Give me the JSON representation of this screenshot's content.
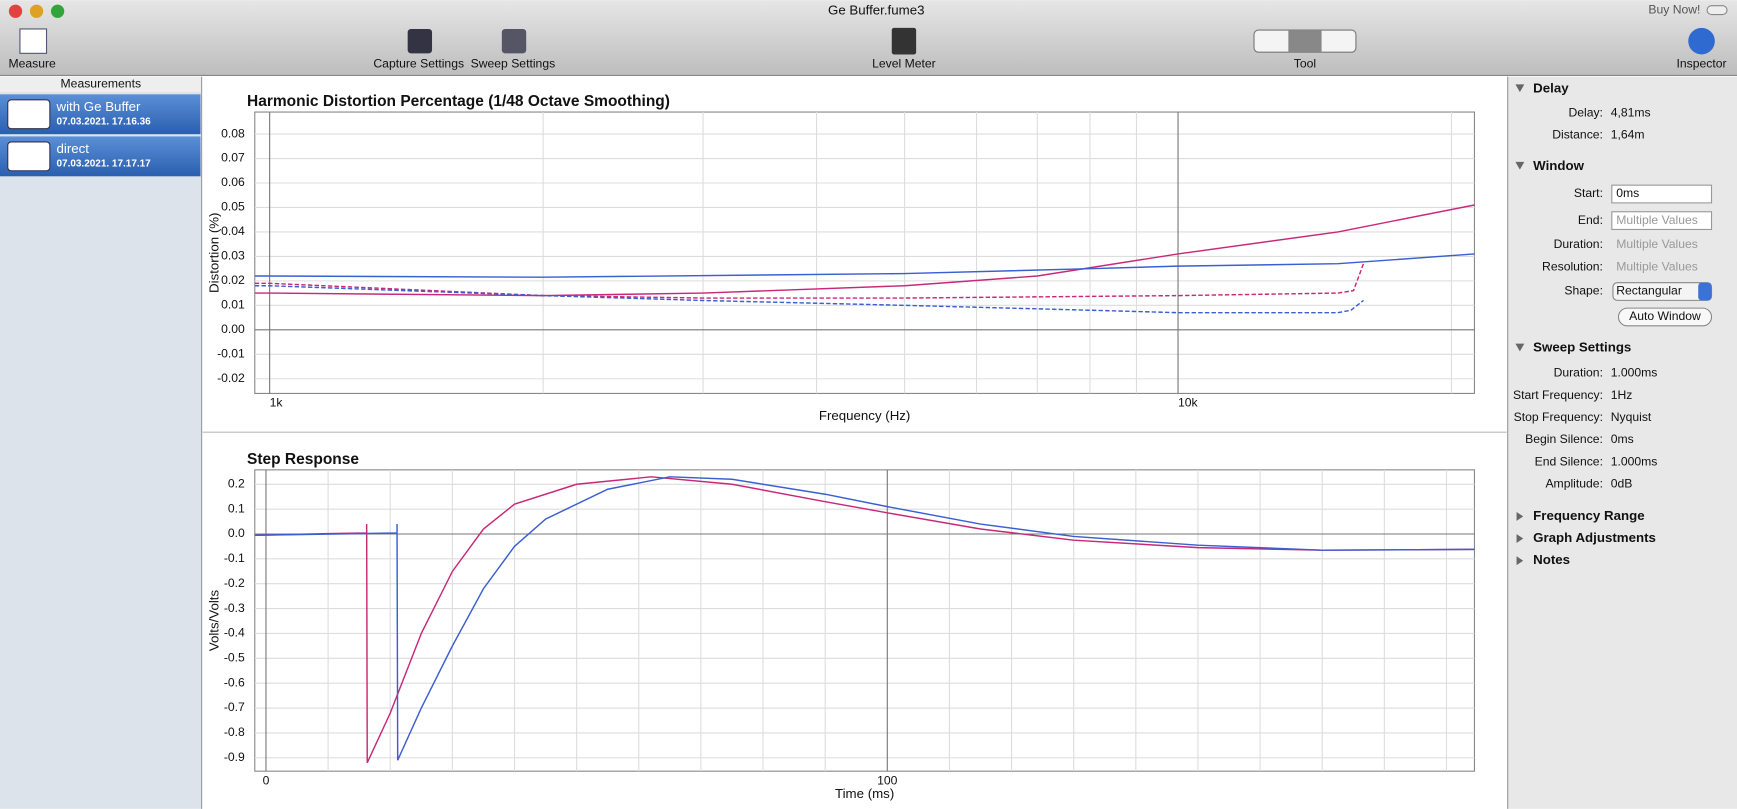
{
  "window": {
    "title": "Ge Buffer.fume3",
    "buy_now": "Buy Now!"
  },
  "toolbar": {
    "items": [
      "Measure",
      "Capture Settings",
      "Sweep Settings",
      "Level Meter",
      "Tool",
      "Inspector"
    ]
  },
  "sidebar": {
    "header": "Measurements",
    "items": [
      {
        "name": "with Ge Buffer",
        "date": "07.03.2021. 17.16.36"
      },
      {
        "name": "direct",
        "date": "07.03.2021. 17.17.17"
      }
    ]
  },
  "chart_data": [
    {
      "type": "line",
      "title": "Harmonic Distortion Percentage (1/48 Octave Smoothing)",
      "x_label": "Frequency (Hz)",
      "y_label": "Distortion (%)",
      "xscale": "log",
      "grid": true,
      "xlim": [
        963,
        21200
      ],
      "xticks": [
        {
          "value": 1000,
          "label": "1k"
        },
        {
          "value": 10000,
          "label": "10k"
        }
      ],
      "xgrid": [
        2000,
        3000,
        4000,
        5000,
        6000,
        7000,
        8000,
        9000,
        20000
      ],
      "ylim": [
        -0.026,
        0.089
      ],
      "yticks": [
        {
          "value": 0.08,
          "label": "0.08"
        },
        {
          "value": 0.07,
          "label": "0.07"
        },
        {
          "value": 0.06,
          "label": "0.06"
        },
        {
          "value": 0.05,
          "label": "0.05"
        },
        {
          "value": 0.04,
          "label": "0.04"
        },
        {
          "value": 0.03,
          "label": "0.03"
        },
        {
          "value": 0.02,
          "label": "0.02"
        },
        {
          "value": 0.01,
          "label": "0.01"
        },
        {
          "value": 0,
          "label": "0.00"
        },
        {
          "value": -0.01,
          "label": "-0.01"
        },
        {
          "value": -0.02,
          "label": "-0.02"
        }
      ],
      "series": [
        {
          "color": "#c8287a",
          "dash": false,
          "x": [
            963,
            1000,
            2000,
            3000,
            5000,
            7000,
            10000,
            15000,
            21200
          ],
          "values": [
            0.015,
            0.015,
            0.014,
            0.015,
            0.018,
            0.022,
            0.031,
            0.04,
            0.051
          ]
        },
        {
          "color": "#3a5fd0",
          "dash": false,
          "x": [
            963,
            1000,
            2000,
            5000,
            8000,
            10000,
            15000,
            21200
          ],
          "values": [
            0.022,
            0.022,
            0.0215,
            0.023,
            0.025,
            0.026,
            0.027,
            0.031
          ]
        },
        {
          "color": "#c8287a",
          "dash": true,
          "x": [
            963,
            1000,
            2000,
            3000,
            5000,
            10000,
            15000,
            15600,
            16000
          ],
          "values": [
            0.019,
            0.019,
            0.014,
            0.013,
            0.013,
            0.014,
            0.015,
            0.016,
            0.027
          ]
        },
        {
          "color": "#3a5fd0",
          "dash": true,
          "x": [
            963,
            1000,
            2000,
            3000,
            5000,
            8000,
            10000,
            15000,
            15500,
            16000
          ],
          "values": [
            0.018,
            0.018,
            0.014,
            0.012,
            0.01,
            0.008,
            0.007,
            0.007,
            0.008,
            0.012
          ]
        }
      ]
    },
    {
      "type": "line",
      "title": "Step Response",
      "x_label": "Time (ms)",
      "y_label": "Volts/Volts",
      "grid": true,
      "xlim": [
        -1.8,
        194.5
      ],
      "xticks": [
        0,
        100
      ],
      "xgrid": [
        10,
        20,
        30,
        40,
        50,
        60,
        70,
        80,
        90,
        110,
        120,
        130,
        140,
        150,
        160,
        170,
        180,
        190
      ],
      "ylim": [
        -0.954,
        0.258
      ],
      "yticks": [
        0.2,
        0.1,
        {
          "value": 0,
          "label": "0.0"
        },
        -0.1,
        -0.2,
        -0.3,
        -0.4,
        -0.5,
        -0.6,
        -0.7,
        -0.8,
        -0.9
      ],
      "series": [
        {
          "color": "#c8287a",
          "dash": false,
          "x": [
            -1.8,
            10,
            16.2,
            16.2,
            16.3,
            20,
            25,
            30,
            35,
            40,
            50,
            62,
            75,
            90,
            100,
            115,
            130,
            150,
            170,
            194.5
          ],
          "values": [
            -0.005,
            0.002,
            0.004,
            0.04,
            -0.92,
            -0.72,
            -0.4,
            -0.15,
            0.02,
            0.12,
            0.2,
            0.23,
            0.2,
            0.13,
            0.085,
            0.02,
            -0.025,
            -0.055,
            -0.065,
            -0.062
          ]
        },
        {
          "color": "#3a5fd0",
          "dash": false,
          "x": [
            -1.8,
            21.1,
            21.1,
            21.2,
            25,
            30,
            35,
            40,
            45,
            55,
            65,
            75,
            90,
            100,
            115,
            130,
            150,
            170,
            194.5
          ],
          "values": [
            -0.005,
            0.004,
            0.04,
            -0.91,
            -0.7,
            -0.45,
            -0.22,
            -0.05,
            0.06,
            0.18,
            0.23,
            0.22,
            0.16,
            0.11,
            0.04,
            -0.01,
            -0.045,
            -0.065,
            -0.062
          ]
        }
      ]
    }
  ],
  "inspector": {
    "delay": {
      "title": "Delay",
      "rows": [
        {
          "label": "Delay:",
          "value": "4,81ms"
        },
        {
          "label": "Distance:",
          "value": "1,64m"
        }
      ]
    },
    "window": {
      "title": "Window",
      "rows": [
        {
          "label": "Start:",
          "value": "0ms"
        },
        {
          "label": "End:",
          "value": "Multiple Values"
        },
        {
          "label": "Duration:",
          "value": "Multiple Values"
        },
        {
          "label": "Resolution:",
          "value": "Multiple Values"
        },
        {
          "label": "Shape:",
          "value": "Rectangular"
        }
      ],
      "button": "Auto Window"
    },
    "sweep": {
      "title": "Sweep Settings",
      "rows": [
        {
          "label": "Duration:",
          "value": "1.000ms"
        },
        {
          "label": "Start Frequency:",
          "value": "1Hz"
        },
        {
          "label": "Stop Frequency:",
          "value": "Nyquist"
        },
        {
          "label": "Begin Silence:",
          "value": "0ms"
        },
        {
          "label": "End Silence:",
          "value": "1.000ms"
        },
        {
          "label": "Amplitude:",
          "value": "0dB"
        }
      ]
    },
    "collapsed": [
      "Frequency Range",
      "Graph Adjustments",
      "Notes"
    ]
  }
}
